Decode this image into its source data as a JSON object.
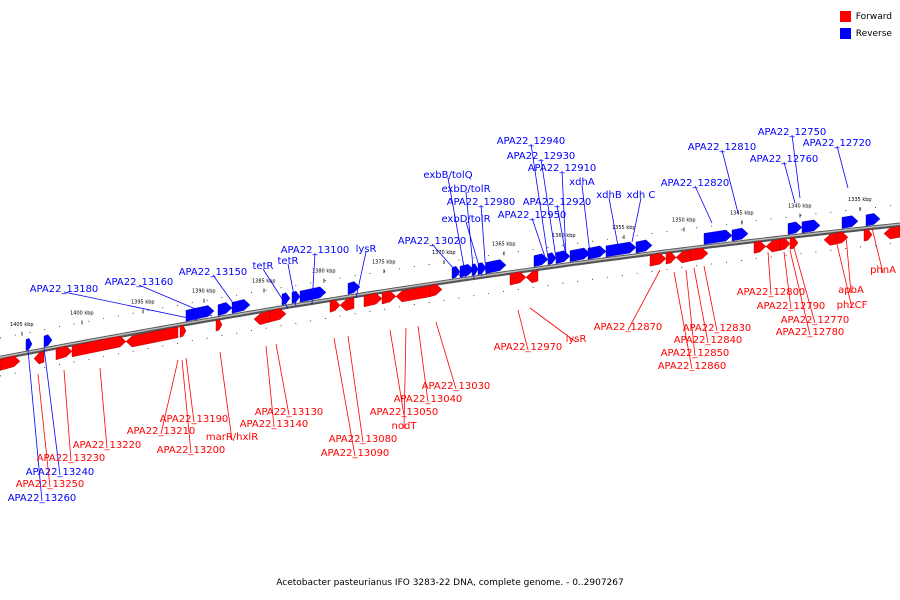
{
  "colors": {
    "forward": "#ff0000",
    "reverse": "#0000ff",
    "backbone": "#808080"
  },
  "legend": [
    {
      "label": "Forward",
      "color": "#ff0000"
    },
    {
      "label": "Reverse",
      "color": "#0000ff"
    }
  ],
  "caption": "Acetobacter pasteurianus IFO 3283-22 DNA, complete genome. - 0..2907267",
  "ticks": [
    "1335 kbp",
    "1340 kbp",
    "1345 kbp",
    "1350 kbp",
    "1355 kbp",
    "1360 kbp",
    "1365 kbp",
    "1370 kbp",
    "1375 kbp",
    "1380 kbp",
    "1385 kbp",
    "1390 kbp",
    "1395 kbp",
    "1400 kbp",
    "1405 kbp"
  ],
  "reverse_labels": [
    "APA22_12750",
    "APA22_12720",
    "APA22_12760",
    "APA22_12810",
    "APA22_12820",
    "APA22_12940",
    "APA22_12930",
    "APA22_12910",
    "xdhA",
    "xdhB",
    "xdh C",
    "APA22_12920",
    "APA22_12950",
    "exbB/tolQ",
    "exbD/tolR",
    "APA22_12980",
    "exbD/tolR",
    "APA22_13020",
    "lysR",
    "APA22_13100",
    "tetR",
    "tetR",
    "APA22_13150",
    "APA22_13160",
    "APA22_13180",
    "APA22_13240",
    "APA22_13260"
  ],
  "forward_labels": [
    "phnA",
    "apbA",
    "phzCF",
    "APA22_12800",
    "APA22_12790",
    "APA22_12770",
    "APA22_12780",
    "APA22_12830",
    "APA22_12840",
    "APA22_12850",
    "APA22_12860",
    "APA22_12870",
    "lysR",
    "APA22_12970",
    "APA22_13030",
    "APA22_13040",
    "nodT",
    "APA22_13050",
    "APA22_13080",
    "APA22_13090",
    "APA22_13130",
    "APA22_13140",
    "marR/hxlR",
    "APA22_13190",
    "APA22_13210",
    "APA22_13200",
    "APA22_13220",
    "APA22_13230",
    "APA22_13250"
  ]
}
